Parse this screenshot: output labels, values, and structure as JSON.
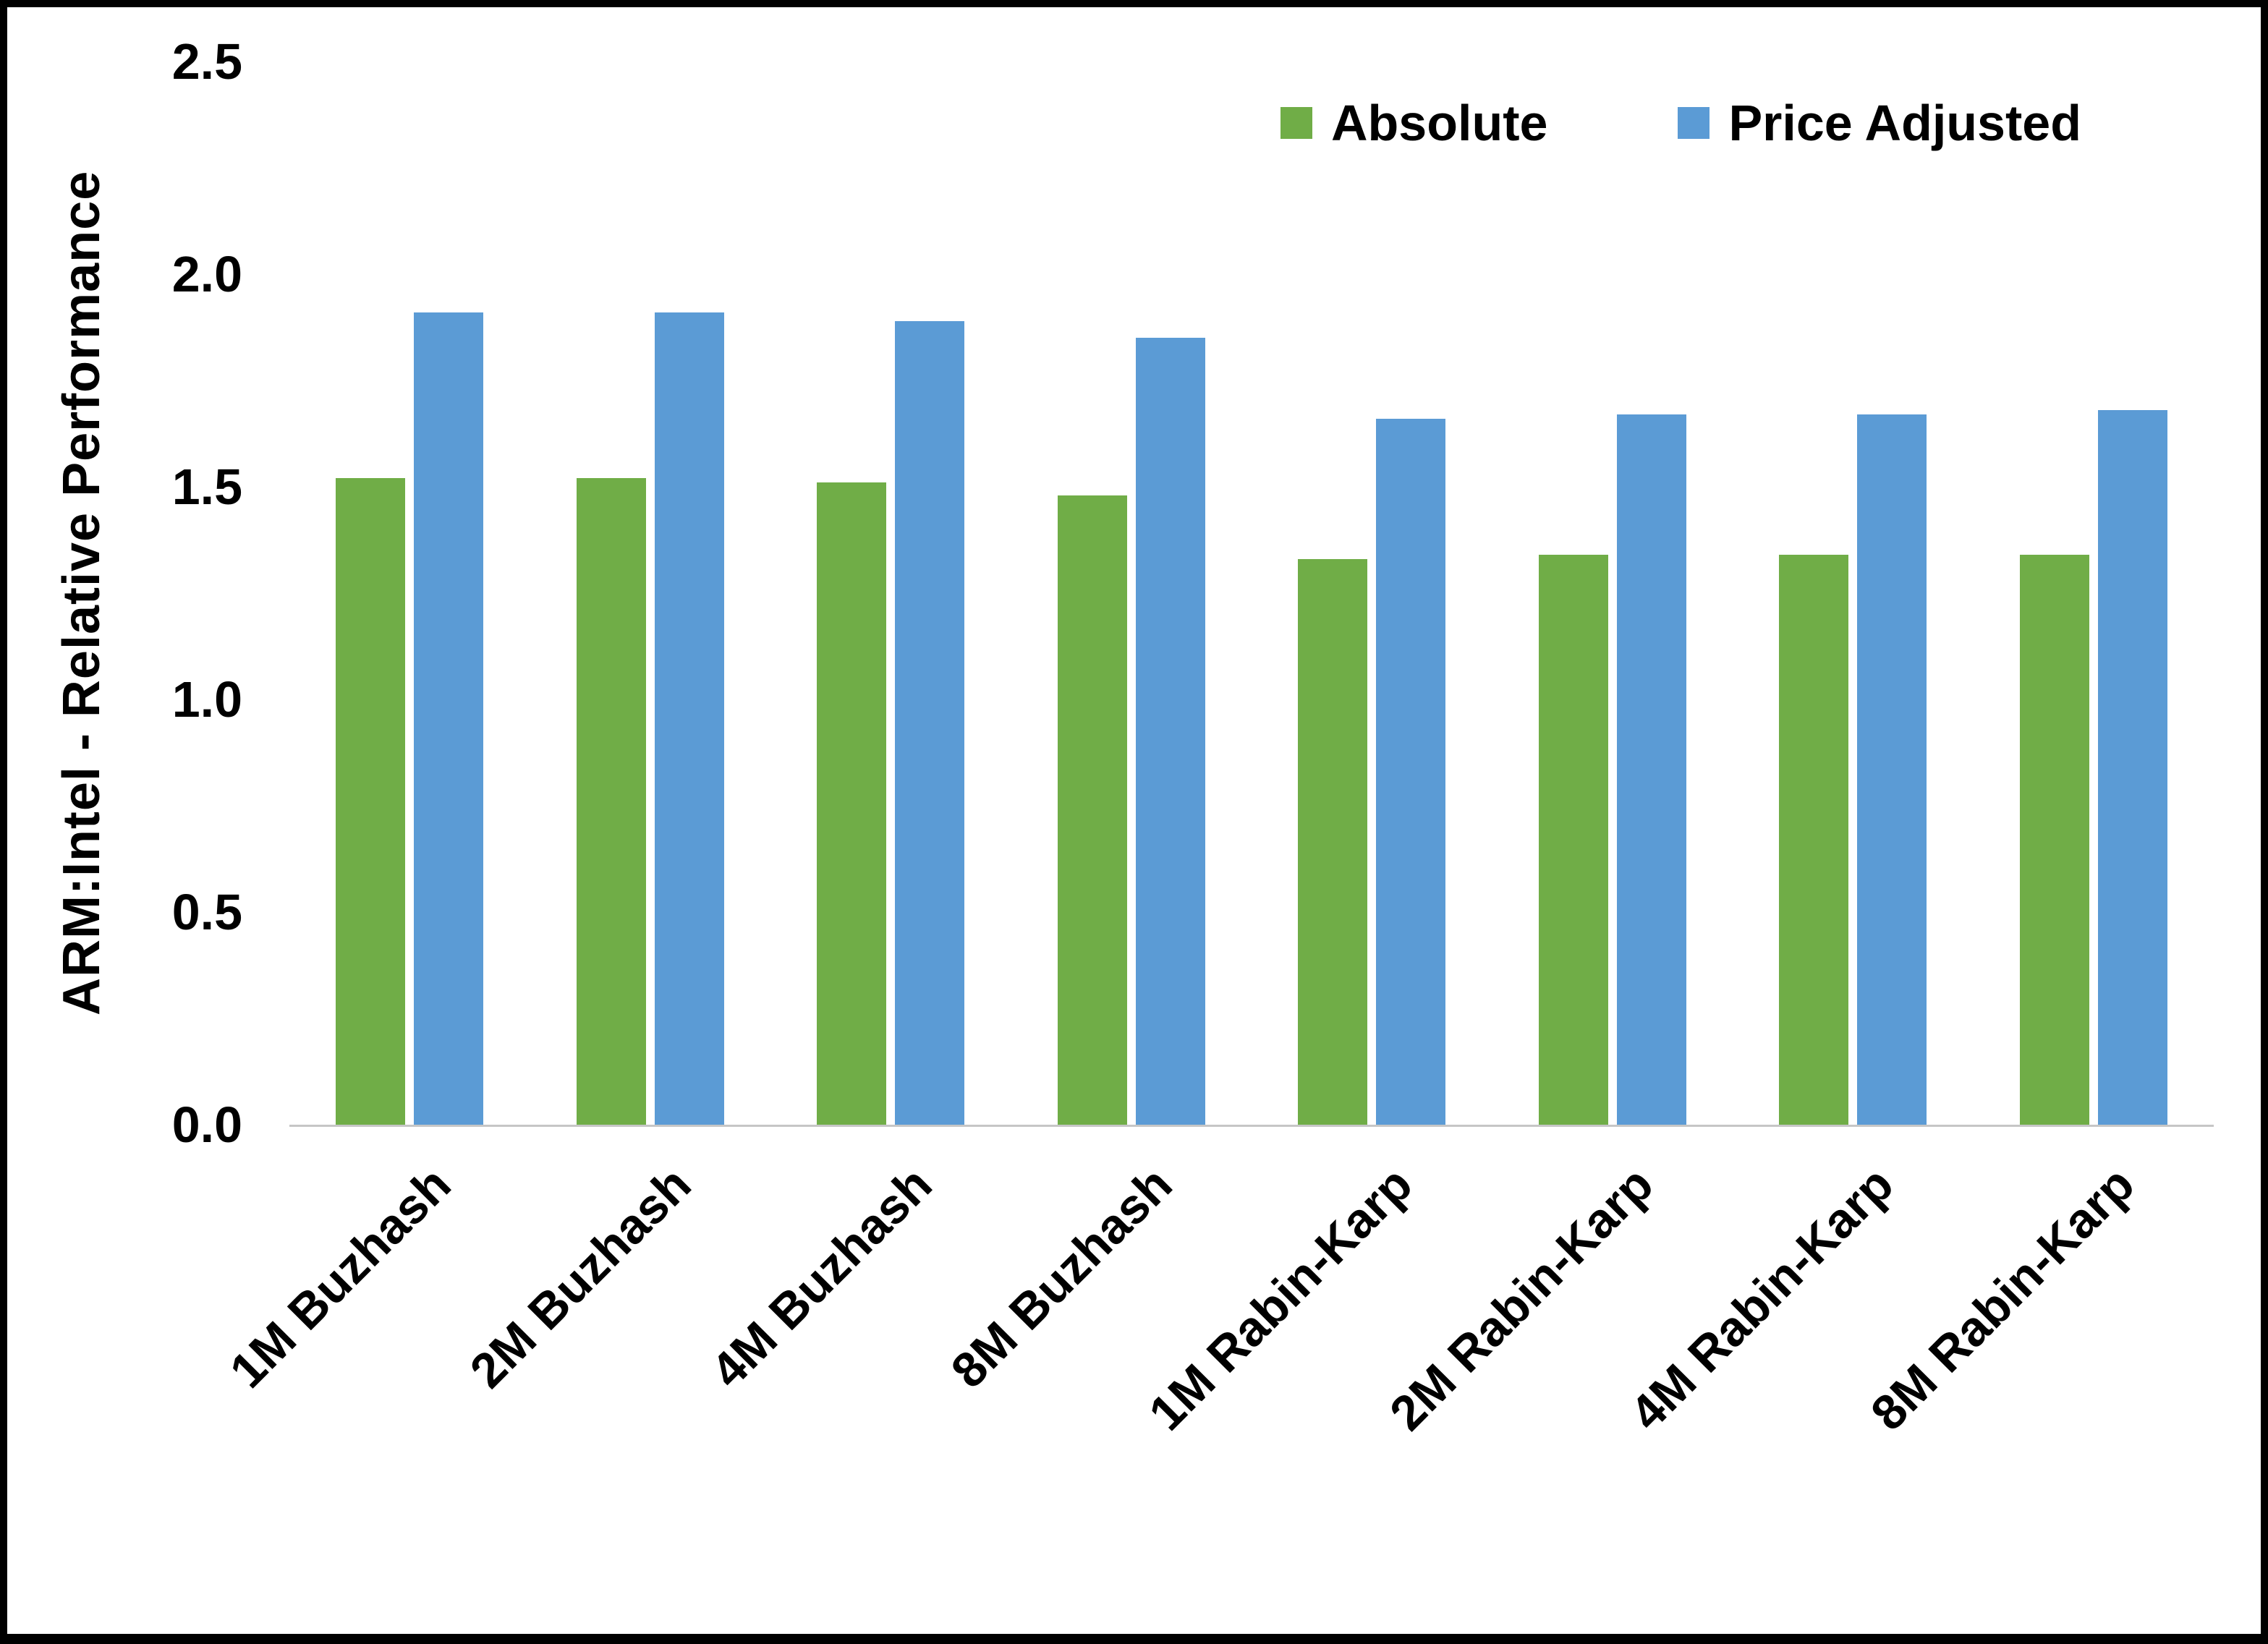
{
  "chart_data": {
    "type": "bar",
    "title": "",
    "xlabel": "",
    "ylabel": "ARM:Intel - Relative Performance",
    "ylim": [
      0,
      2.5
    ],
    "yticks": [
      0.0,
      0.5,
      1.0,
      1.5,
      2.0,
      2.5
    ],
    "grid": false,
    "legend_position": "top-right-inside",
    "axis_line_color": "#c6c6c6",
    "categories": [
      "1M Buzhash",
      "2M Buzhash",
      "4M Buzhash",
      "8M Buzhash",
      "1M Rabin-Karp",
      "2M Rabin-Karp",
      "4M Rabin-Karp",
      "8M Rabin-Karp"
    ],
    "series": [
      {
        "name": "Absolute",
        "color": "#70AD47",
        "values": [
          1.52,
          1.52,
          1.51,
          1.48,
          1.33,
          1.34,
          1.34,
          1.34
        ]
      },
      {
        "name": "Price Adjusted",
        "color": "#5B9BD5",
        "values": [
          1.91,
          1.91,
          1.89,
          1.85,
          1.66,
          1.67,
          1.67,
          1.68
        ]
      }
    ]
  }
}
